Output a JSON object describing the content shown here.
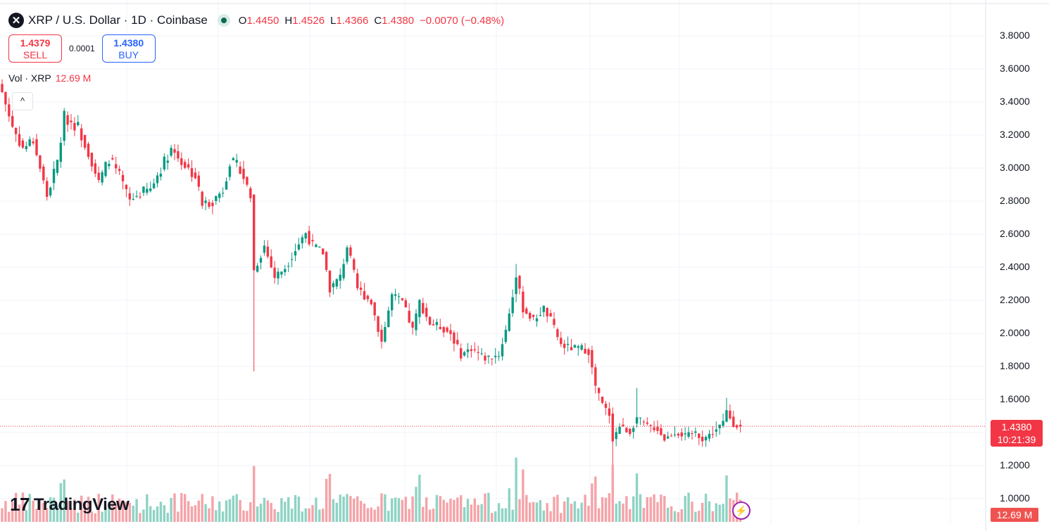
{
  "header": {
    "symbol_title": "XRP / U.S. Dollar · 1D · Coinbase",
    "ohlc": {
      "o_label": "O",
      "o": "1.4450",
      "h_label": "H",
      "h": "1.4526",
      "l_label": "L",
      "l": "1.4366",
      "c_label": "C",
      "c": "1.4380",
      "change": "−0.0070 (−0.48%)"
    }
  },
  "trade": {
    "sell_price": "1.4379",
    "sell_label": "SELL",
    "spread": "0.0001",
    "buy_price": "1.4380",
    "buy_label": "BUY"
  },
  "volume_legend": {
    "label": "Vol · XRP",
    "value": "12.69 M"
  },
  "collapse_glyph": "^",
  "brand": "TradingView",
  "price_tag": {
    "price": "1.4380",
    "countdown": "10:21:39"
  },
  "volume_tag": "12.69 M",
  "colors": {
    "up": "#089981",
    "down": "#f23645",
    "vol_up": "#8fd3c4",
    "vol_down": "#f5a3a8",
    "grid": "#f0f3fa"
  },
  "chart_data": {
    "type": "candlestick",
    "title": "XRP / U.S. Dollar · 1D · Coinbase",
    "ylim": [
      0.95,
      3.85
    ],
    "y_ticks": [
      "3.8000",
      "3.6000",
      "3.4000",
      "3.2000",
      "3.0000",
      "2.8000",
      "2.6000",
      "2.4000",
      "2.2000",
      "2.0000",
      "1.8000",
      "1.6000",
      "1.4000",
      "1.2000",
      "1.0000"
    ],
    "days": 215,
    "close_keypoints": [
      [
        0,
        3.46
      ],
      [
        3,
        3.25
      ],
      [
        6,
        3.12
      ],
      [
        9,
        3.17
      ],
      [
        13,
        2.83
      ],
      [
        16,
        3.04
      ],
      [
        18,
        3.31
      ],
      [
        22,
        3.25
      ],
      [
        25,
        3.1
      ],
      [
        28,
        2.91
      ],
      [
        31,
        3.06
      ],
      [
        34,
        2.95
      ],
      [
        37,
        2.8
      ],
      [
        40,
        2.85
      ],
      [
        43,
        2.87
      ],
      [
        46,
        3.0
      ],
      [
        49,
        3.12
      ],
      [
        52,
        3.04
      ],
      [
        56,
        2.95
      ],
      [
        58,
        2.78
      ],
      [
        61,
        2.8
      ],
      [
        64,
        2.87
      ],
      [
        66,
        3.04
      ],
      [
        69,
        3.0
      ],
      [
        72,
        2.83
      ],
      [
        73,
        2.38
      ],
      [
        76,
        2.53
      ],
      [
        79,
        2.34
      ],
      [
        82,
        2.4
      ],
      [
        85,
        2.51
      ],
      [
        88,
        2.61
      ],
      [
        90,
        2.53
      ],
      [
        93,
        2.49
      ],
      [
        95,
        2.27
      ],
      [
        98,
        2.34
      ],
      [
        100,
        2.53
      ],
      [
        103,
        2.27
      ],
      [
        107,
        2.19
      ],
      [
        110,
        1.95
      ],
      [
        113,
        2.23
      ],
      [
        116,
        2.19
      ],
      [
        119,
        2.02
      ],
      [
        121,
        2.19
      ],
      [
        124,
        2.06
      ],
      [
        127,
        2.04
      ],
      [
        130,
        2.0
      ],
      [
        133,
        1.87
      ],
      [
        136,
        1.91
      ],
      [
        140,
        1.85
      ],
      [
        144,
        1.87
      ],
      [
        146,
        2.02
      ],
      [
        149,
        2.34
      ],
      [
        151,
        2.15
      ],
      [
        154,
        2.08
      ],
      [
        157,
        2.15
      ],
      [
        159,
        2.08
      ],
      [
        162,
        1.93
      ],
      [
        165,
        1.91
      ],
      [
        168,
        1.91
      ],
      [
        170,
        1.89
      ],
      [
        172,
        1.68
      ],
      [
        174,
        1.57
      ],
      [
        176,
        1.51
      ],
      [
        177,
        1.36
      ],
      [
        179,
        1.44
      ],
      [
        182,
        1.4
      ],
      [
        184,
        1.49
      ],
      [
        187,
        1.44
      ],
      [
        190,
        1.42
      ],
      [
        192,
        1.36
      ],
      [
        195,
        1.4
      ],
      [
        198,
        1.38
      ],
      [
        201,
        1.4
      ],
      [
        203,
        1.36
      ],
      [
        206,
        1.4
      ],
      [
        209,
        1.46
      ],
      [
        210,
        1.53
      ],
      [
        212,
        1.45
      ],
      [
        214,
        1.438
      ]
    ],
    "wick_extremes": [
      [
        73,
        1.77
      ],
      [
        177,
        1.12
      ],
      [
        184,
        1.67
      ],
      [
        149,
        2.42
      ],
      [
        210,
        1.61
      ]
    ],
    "volume": {
      "last": "12.69 M"
    }
  }
}
